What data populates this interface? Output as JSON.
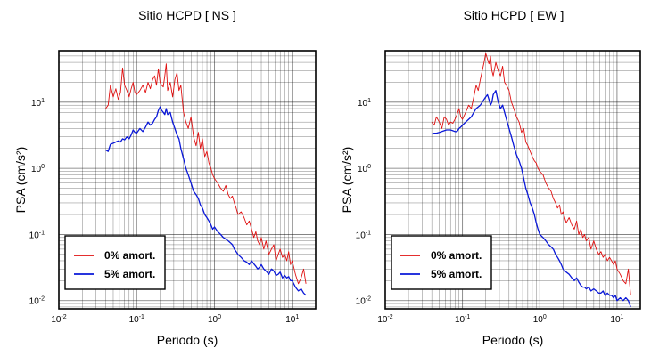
{
  "y_axis_label": "PSA (cm/s²)",
  "colors": {
    "series_0": "#e01010",
    "series_5": "#0a18d8",
    "grid": "#000000",
    "frame": "#000000"
  },
  "chart_data": [
    {
      "type": "line",
      "title": "Sitio HCPD [ NS ]",
      "xlabel": "Periodo (s)",
      "ylabel": "PSA (cm/s²)",
      "xscale": "log",
      "yscale": "log",
      "xlim": [
        0.01,
        20
      ],
      "ylim": [
        0.0075,
        60
      ],
      "grid": true,
      "legend": "bottom-left",
      "x_ticks": [
        "10-2",
        "10-1",
        "100",
        "101"
      ],
      "y_ticks": [
        "10-2",
        "10-1",
        "100",
        "101"
      ],
      "series": [
        {
          "name": "0% amort.",
          "color": "#e01010",
          "x": [
            0.04,
            0.043,
            0.046,
            0.05,
            0.054,
            0.058,
            0.062,
            0.066,
            0.07,
            0.075,
            0.08,
            0.085,
            0.09,
            0.095,
            0.1,
            0.11,
            0.12,
            0.13,
            0.14,
            0.15,
            0.16,
            0.17,
            0.18,
            0.19,
            0.2,
            0.21,
            0.22,
            0.23,
            0.24,
            0.25,
            0.27,
            0.29,
            0.31,
            0.33,
            0.35,
            0.37,
            0.4,
            0.43,
            0.46,
            0.5,
            0.54,
            0.58,
            0.62,
            0.66,
            0.7,
            0.75,
            0.8,
            0.85,
            0.9,
            0.95,
            1.0,
            1.1,
            1.2,
            1.3,
            1.4,
            1.5,
            1.6,
            1.7,
            1.8,
            1.9,
            2.0,
            2.2,
            2.4,
            2.6,
            2.8,
            3.0,
            3.2,
            3.4,
            3.6,
            3.8,
            4.0,
            4.3,
            4.6,
            5.0,
            5.4,
            5.8,
            6.2,
            6.6,
            7.0,
            7.5,
            8.0,
            8.5,
            9.0,
            9.5,
            10.0,
            11.0,
            12.0,
            13.0,
            14.0,
            15.0
          ],
          "y": [
            8,
            9,
            18,
            12,
            16,
            11,
            14,
            33,
            18,
            15,
            12,
            16,
            20,
            14,
            13,
            15,
            18,
            14,
            20,
            16,
            22,
            25,
            18,
            32,
            20,
            18,
            17,
            25,
            38,
            15,
            20,
            12,
            22,
            28,
            15,
            18,
            7,
            5,
            4,
            6,
            3,
            2.2,
            3.5,
            2.0,
            2.8,
            1.5,
            1.8,
            1.2,
            1.0,
            0.8,
            0.7,
            0.6,
            0.5,
            0.45,
            0.55,
            0.4,
            0.35,
            0.38,
            0.3,
            0.25,
            0.2,
            0.22,
            0.18,
            0.14,
            0.16,
            0.12,
            0.09,
            0.11,
            0.08,
            0.07,
            0.09,
            0.06,
            0.08,
            0.05,
            0.06,
            0.07,
            0.04,
            0.05,
            0.06,
            0.045,
            0.05,
            0.04,
            0.055,
            0.035,
            0.04,
            0.025,
            0.018,
            0.022,
            0.03,
            0.018
          ]
        },
        {
          "name": "5% amort.",
          "color": "#0a18d8",
          "x": [
            0.04,
            0.043,
            0.046,
            0.05,
            0.054,
            0.058,
            0.062,
            0.066,
            0.07,
            0.075,
            0.08,
            0.085,
            0.09,
            0.095,
            0.1,
            0.11,
            0.12,
            0.13,
            0.14,
            0.15,
            0.16,
            0.17,
            0.18,
            0.19,
            0.2,
            0.21,
            0.22,
            0.23,
            0.24,
            0.25,
            0.27,
            0.29,
            0.31,
            0.33,
            0.35,
            0.37,
            0.4,
            0.43,
            0.46,
            0.5,
            0.54,
            0.58,
            0.62,
            0.66,
            0.7,
            0.75,
            0.8,
            0.85,
            0.9,
            0.95,
            1.0,
            1.1,
            1.2,
            1.3,
            1.4,
            1.5,
            1.6,
            1.7,
            1.8,
            1.9,
            2.0,
            2.2,
            2.4,
            2.6,
            2.8,
            3.0,
            3.2,
            3.4,
            3.6,
            3.8,
            4.0,
            4.3,
            4.6,
            5.0,
            5.4,
            5.8,
            6.2,
            6.6,
            7.0,
            7.5,
            8.0,
            8.5,
            9.0,
            9.5,
            10.0,
            11.0,
            12.0,
            13.0,
            14.0,
            15.0
          ],
          "y": [
            1.9,
            1.8,
            2.3,
            2.4,
            2.5,
            2.6,
            2.5,
            2.8,
            2.7,
            3.0,
            2.8,
            3.2,
            3.8,
            3.5,
            3.4,
            4.0,
            3.6,
            4.2,
            5.0,
            4.5,
            4.8,
            5.5,
            6.0,
            7.5,
            8.5,
            7.5,
            7.0,
            6.5,
            8.0,
            6.5,
            7.0,
            5.0,
            4.0,
            3.2,
            2.8,
            2.0,
            1.4,
            1.0,
            0.8,
            0.6,
            0.45,
            0.4,
            0.35,
            0.28,
            0.25,
            0.2,
            0.18,
            0.16,
            0.14,
            0.12,
            0.13,
            0.11,
            0.1,
            0.09,
            0.085,
            0.08,
            0.075,
            0.07,
            0.06,
            0.055,
            0.05,
            0.045,
            0.04,
            0.038,
            0.035,
            0.04,
            0.036,
            0.033,
            0.03,
            0.032,
            0.035,
            0.03,
            0.028,
            0.025,
            0.03,
            0.028,
            0.024,
            0.025,
            0.027,
            0.022,
            0.024,
            0.022,
            0.023,
            0.02,
            0.02,
            0.016,
            0.014,
            0.015,
            0.013,
            0.012
          ]
        }
      ]
    },
    {
      "type": "line",
      "title": "Sitio HCPD [ EW ]",
      "xlabel": "Periodo (s)",
      "ylabel": "PSA (cm/s²)",
      "xscale": "log",
      "yscale": "log",
      "xlim": [
        0.01,
        20
      ],
      "ylim": [
        0.0075,
        60
      ],
      "grid": true,
      "legend": "bottom-left",
      "x_ticks": [
        "10-2",
        "10-1",
        "100",
        "101"
      ],
      "y_ticks": [
        "10-2",
        "10-1",
        "100",
        "101"
      ],
      "series": [
        {
          "name": "0% amort.",
          "color": "#e01010",
          "x": [
            0.04,
            0.043,
            0.046,
            0.05,
            0.054,
            0.058,
            0.062,
            0.066,
            0.07,
            0.075,
            0.08,
            0.085,
            0.09,
            0.095,
            0.1,
            0.11,
            0.12,
            0.13,
            0.14,
            0.15,
            0.16,
            0.17,
            0.18,
            0.19,
            0.2,
            0.21,
            0.22,
            0.23,
            0.24,
            0.25,
            0.27,
            0.29,
            0.31,
            0.33,
            0.35,
            0.37,
            0.4,
            0.43,
            0.46,
            0.5,
            0.54,
            0.58,
            0.62,
            0.66,
            0.7,
            0.75,
            0.8,
            0.85,
            0.9,
            0.95,
            1.0,
            1.1,
            1.2,
            1.3,
            1.4,
            1.5,
            1.6,
            1.7,
            1.8,
            1.9,
            2.0,
            2.2,
            2.4,
            2.6,
            2.8,
            3.0,
            3.2,
            3.4,
            3.6,
            3.8,
            4.0,
            4.3,
            4.6,
            5.0,
            5.4,
            5.8,
            6.2,
            6.6,
            7.0,
            7.5,
            8.0,
            8.5,
            9.0,
            9.5,
            10.0,
            11.0,
            12.0,
            13.0,
            14.0,
            15.0
          ],
          "y": [
            5,
            4.5,
            6,
            5,
            4,
            6,
            5.5,
            4.5,
            5,
            4.8,
            5.5,
            6.5,
            8,
            6,
            5.5,
            7,
            9,
            8,
            12,
            18,
            15,
            22,
            30,
            40,
            55,
            45,
            38,
            50,
            30,
            25,
            40,
            30,
            25,
            35,
            20,
            18,
            15,
            10,
            8,
            6,
            5,
            3.5,
            4,
            2.5,
            2.2,
            1.8,
            1.5,
            1.3,
            1.2,
            1.0,
            0.9,
            0.8,
            0.6,
            0.5,
            0.45,
            0.35,
            0.3,
            0.25,
            0.28,
            0.2,
            0.22,
            0.15,
            0.18,
            0.14,
            0.12,
            0.16,
            0.1,
            0.12,
            0.09,
            0.1,
            0.08,
            0.09,
            0.06,
            0.08,
            0.06,
            0.05,
            0.055,
            0.045,
            0.05,
            0.04,
            0.045,
            0.04,
            0.035,
            0.04,
            0.03,
            0.025,
            0.02,
            0.018,
            0.03,
            0.012
          ]
        },
        {
          "name": "5% amort.",
          "color": "#0a18d8",
          "x": [
            0.04,
            0.043,
            0.046,
            0.05,
            0.054,
            0.058,
            0.062,
            0.066,
            0.07,
            0.075,
            0.08,
            0.085,
            0.09,
            0.095,
            0.1,
            0.11,
            0.12,
            0.13,
            0.14,
            0.15,
            0.16,
            0.17,
            0.18,
            0.19,
            0.2,
            0.21,
            0.22,
            0.23,
            0.24,
            0.25,
            0.27,
            0.29,
            0.31,
            0.33,
            0.35,
            0.37,
            0.4,
            0.43,
            0.46,
            0.5,
            0.54,
            0.58,
            0.62,
            0.66,
            0.7,
            0.75,
            0.8,
            0.85,
            0.9,
            0.95,
            1.0,
            1.1,
            1.2,
            1.3,
            1.4,
            1.5,
            1.6,
            1.7,
            1.8,
            1.9,
            2.0,
            2.2,
            2.4,
            2.6,
            2.8,
            3.0,
            3.2,
            3.4,
            3.6,
            3.8,
            4.0,
            4.3,
            4.6,
            5.0,
            5.4,
            5.8,
            6.2,
            6.6,
            7.0,
            7.5,
            8.0,
            8.5,
            9.0,
            9.5,
            10.0,
            11.0,
            12.0,
            13.0,
            14.0,
            15.0
          ],
          "y": [
            3.3,
            3.4,
            3.4,
            3.5,
            3.6,
            3.7,
            3.8,
            3.8,
            3.8,
            3.7,
            3.6,
            3.6,
            4.0,
            4.2,
            4.5,
            5.0,
            5.5,
            6.0,
            7.0,
            8.0,
            8.5,
            9.0,
            10.0,
            11.0,
            12.0,
            13.0,
            11.0,
            9.0,
            10.0,
            13.0,
            15.0,
            10.0,
            8.0,
            9.0,
            7.0,
            5.5,
            4.0,
            3.0,
            2.2,
            1.6,
            1.3,
            1.0,
            0.7,
            0.5,
            0.4,
            0.3,
            0.25,
            0.2,
            0.15,
            0.12,
            0.1,
            0.09,
            0.08,
            0.07,
            0.065,
            0.06,
            0.05,
            0.045,
            0.04,
            0.035,
            0.03,
            0.027,
            0.025,
            0.022,
            0.02,
            0.022,
            0.019,
            0.017,
            0.016,
            0.016,
            0.015,
            0.016,
            0.014,
            0.015,
            0.014,
            0.013,
            0.013,
            0.014,
            0.012,
            0.013,
            0.012,
            0.012,
            0.011,
            0.012,
            0.01,
            0.011,
            0.01,
            0.011,
            0.01,
            0.008
          ]
        }
      ]
    }
  ]
}
